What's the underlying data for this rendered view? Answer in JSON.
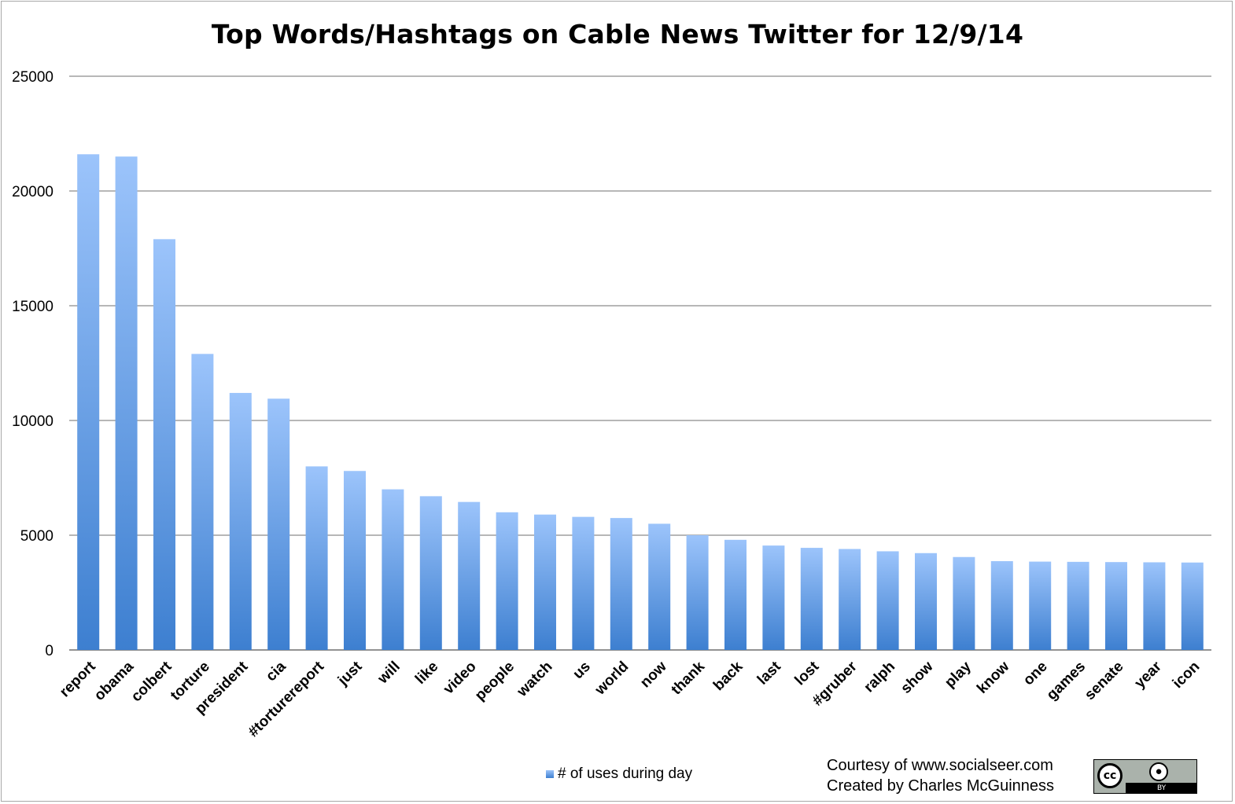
{
  "chart_data": {
    "type": "bar",
    "title": "Top Words/Hashtags on Cable News Twitter for 12/9/14",
    "xlabel": "",
    "ylabel": "",
    "ylim": [
      0,
      25000
    ],
    "yticks": [
      "25000",
      "20000",
      "15000",
      "10000",
      "5000",
      "0"
    ],
    "grid": true,
    "legend_position": "bottom",
    "categories": [
      "report",
      "obama",
      "colbert",
      "torture",
      "president",
      "cia",
      "#torturereport",
      "just",
      "will",
      "like",
      "video",
      "people",
      "watch",
      "us",
      "world",
      "now",
      "thank",
      "back",
      "last",
      "lost",
      "#gruber",
      "ralph",
      "show",
      "play",
      "know",
      "one",
      "games",
      "senate",
      "year",
      "icon"
    ],
    "series": [
      {
        "name": "# of uses during day",
        "values": [
          21600,
          21500,
          17900,
          12900,
          11200,
          10950,
          8000,
          7800,
          7000,
          6700,
          6450,
          6000,
          5900,
          5800,
          5750,
          5500,
          5000,
          4800,
          4550,
          4450,
          4400,
          4300,
          4220,
          4050,
          3870,
          3850,
          3840,
          3830,
          3820,
          3810
        ]
      }
    ],
    "colors": {
      "bar_top": "#9cc4fb",
      "bar_bottom": "#3d7fd0",
      "grid": "#8c8c8c"
    }
  },
  "footer": {
    "credit_line1": "Courtesy of www.socialseer.com",
    "credit_line2": "Created by Charles McGuinness"
  },
  "license": {
    "cc_mark": "cc",
    "by_label": "BY",
    "icon": "creative-commons-by-icon"
  }
}
